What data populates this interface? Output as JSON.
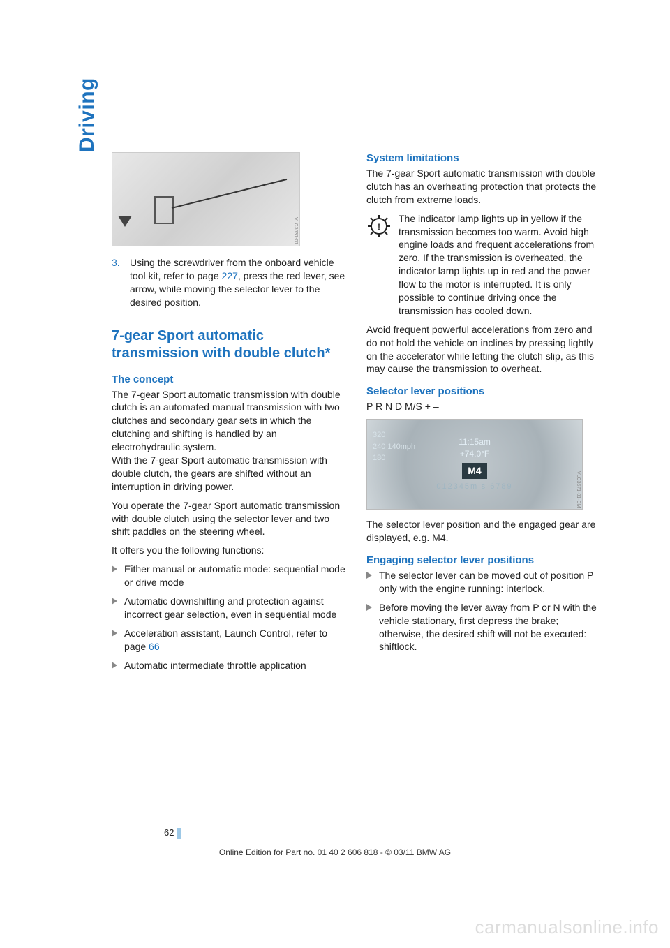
{
  "side_label": "Driving",
  "figure1_code": "VLC3631-01",
  "step3": {
    "num": "3.",
    "text_a": "Using the screwdriver from the onboard vehicle tool kit, refer to page ",
    "link": "227",
    "text_b": ", press the red lever, see arrow, while moving the selector lever to the desired position."
  },
  "h2": "7-gear Sport automatic transmission with double clutch*",
  "concept_h": "The concept",
  "concept_p1": "The 7-gear Sport automatic transmission with double clutch is an automated manual transmission with two clutches and secondary gear sets in which the clutching and shifting is handled by an electrohydraulic system.\nWith the 7-gear Sport automatic transmission with double clutch, the gears are shifted without an interruption in driving power.",
  "concept_p2": "You operate the 7-gear Sport automatic transmission with double clutch using the selector lever and two shift paddles on the steering wheel.",
  "concept_p3": "It offers you the following functions:",
  "bullets_left": [
    "Either manual or automatic mode: sequential mode or drive mode",
    "Automatic downshifting and protection against incorrect gear selection, even in sequential mode"
  ],
  "bullet_accel_a": "Acceleration assistant, Launch Control, refer to page ",
  "bullet_accel_link": "66",
  "bullet_throttle": "Automatic intermediate throttle application",
  "syslim_h": "System limitations",
  "syslim_p1": "The 7-gear Sport automatic transmission with double clutch has an overheating protection that protects the clutch from extreme loads.",
  "syslim_warn": "The indicator lamp lights up in yellow if the transmission becomes too warm. Avoid high engine loads and frequent accelerations from zero. If the transmission is overheated, the indicator lamp lights up in red and the power flow to the motor is interrupted. It is only possible to continue driving once the transmission has cooled down.",
  "syslim_p2": "Avoid frequent powerful accelerations from zero and do not hold the vehicle on inclines by pressing lightly on the accelerator while letting the clutch slip, as this may cause the transmission to overheat.",
  "selpos_h": "Selector lever positions",
  "selpos_line": "P R N D M/S + –",
  "dash": {
    "left": "320\n240   140mph\n180",
    "time": "11:15am",
    "temp": "+74.0°F",
    "gear": "M4",
    "odo": "012345mls  6789",
    "code": "VLC3671-01-CM"
  },
  "selpos_p": "The selector lever position and the engaged gear are displayed, e.g. M4.",
  "engage_h": "Engaging selector lever positions",
  "bullets_right": [
    "The selector lever can be moved out of position P only with the engine running: interlock.",
    "Before moving the lever away from P or N with the vehicle stationary, first depress the brake; otherwise, the desired shift will not be executed: shiftlock."
  ],
  "pagenum": "62",
  "footer": "Online Edition for Part no. 01 40 2 606 818 - © 03/11 BMW AG",
  "watermark": "carmanualsonline.info"
}
